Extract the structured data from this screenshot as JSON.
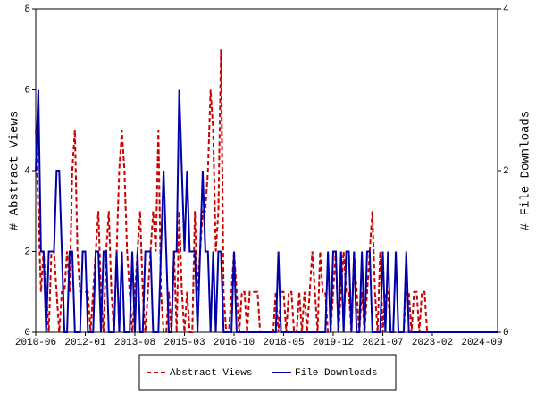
{
  "chart_data": {
    "type": "line",
    "y_label": "# Abstract Views",
    "y2_label": "# File Downloads",
    "categories": [
      "2010-06",
      null,
      null,
      null,
      null,
      null,
      null,
      null,
      null,
      null,
      null,
      null,
      null,
      null,
      null,
      null,
      null,
      null,
      null,
      "2012-01",
      null,
      null,
      null,
      null,
      null,
      null,
      null,
      null,
      null,
      null,
      null,
      null,
      null,
      null,
      null,
      null,
      null,
      null,
      "2013-08",
      null,
      null,
      null,
      null,
      null,
      null,
      null,
      null,
      null,
      null,
      null,
      null,
      null,
      null,
      null,
      null,
      null,
      null,
      "2015-03",
      null,
      null,
      null,
      null,
      null,
      null,
      null,
      null,
      null,
      null,
      null,
      null,
      null,
      null,
      null,
      null,
      null,
      null,
      "2016-10",
      null,
      null,
      null,
      null,
      null,
      null,
      null,
      null,
      null,
      null,
      null,
      null,
      null,
      null,
      null,
      null,
      null,
      null,
      "2018-05",
      null,
      null,
      null,
      null,
      null,
      null,
      null,
      null,
      null,
      null,
      null,
      null,
      null,
      null,
      null,
      null,
      null,
      null,
      "2019-12",
      null,
      null,
      null,
      null,
      null,
      null,
      null,
      null,
      null,
      null,
      null,
      null,
      null,
      null,
      null,
      null,
      null,
      null,
      "2021-07",
      null,
      null,
      null,
      null,
      null,
      null,
      null,
      null,
      null,
      null,
      null,
      null,
      null,
      null,
      null,
      null,
      null,
      null,
      "2023-02",
      null,
      null,
      null,
      null,
      null,
      null,
      null,
      null,
      null,
      null,
      null,
      null,
      null,
      null,
      null,
      null,
      null,
      null,
      "2024-09",
      null,
      null,
      null,
      null,
      null,
      null
    ],
    "series": [
      {
        "name": "Abstract Views",
        "color": "#cc0000",
        "dash": true,
        "values": [
          5,
          3,
          1,
          2,
          1,
          0,
          2,
          2,
          1,
          0,
          1,
          1,
          2,
          1,
          4,
          5,
          2,
          1,
          1,
          1,
          1,
          0,
          1,
          2,
          3,
          1,
          0,
          2,
          3,
          1,
          0,
          2,
          4,
          5,
          4,
          2,
          1,
          0,
          1,
          2,
          3,
          1,
          0,
          1,
          2,
          3,
          2,
          5,
          1,
          0,
          0,
          1,
          0,
          2,
          0,
          3,
          1,
          0,
          1,
          0,
          0,
          3,
          1,
          2,
          3,
          3,
          4,
          6,
          5,
          2,
          3,
          7,
          1,
          0,
          0,
          1,
          2,
          1,
          0,
          1,
          1,
          0,
          1,
          1,
          1,
          1,
          0,
          0,
          0,
          0,
          0,
          0,
          1,
          0,
          1,
          1,
          0,
          1,
          1,
          0,
          0,
          1,
          0,
          1,
          0,
          1,
          2,
          1,
          0,
          2,
          1,
          1,
          0,
          0,
          1,
          2,
          0,
          1,
          2,
          1,
          1,
          0,
          2,
          1,
          0,
          1,
          0,
          1,
          2,
          3,
          1,
          0,
          2,
          0,
          1,
          1,
          0,
          0,
          0,
          0,
          0,
          0,
          1,
          1,
          0,
          1,
          1,
          0,
          1,
          1,
          0,
          0,
          0,
          0,
          0,
          0,
          0,
          0,
          0,
          0,
          0,
          0,
          0,
          0,
          0,
          0,
          0,
          0,
          0,
          0,
          0,
          0,
          0,
          0,
          0,
          0,
          0,
          0
        ]
      },
      {
        "name": "File Downloads",
        "color": "#0000aa",
        "axis": "y2",
        "values": [
          2,
          3,
          1,
          1,
          0,
          1,
          1,
          1,
          2,
          2,
          1,
          0,
          0,
          1,
          1,
          0,
          0,
          0,
          1,
          1,
          0,
          0,
          0,
          1,
          1,
          0,
          1,
          1,
          0,
          0,
          0,
          1,
          0,
          1,
          0,
          0,
          0,
          1,
          0,
          1,
          0,
          0,
          1,
          1,
          1,
          0,
          0,
          0,
          1,
          2,
          1,
          0,
          0,
          1,
          1,
          3,
          2,
          1,
          2,
          1,
          1,
          1,
          0,
          1,
          2,
          1,
          1,
          0,
          1,
          0,
          1,
          1,
          0,
          0,
          0,
          0,
          1,
          0,
          0,
          0,
          0,
          0,
          0,
          0,
          0,
          0,
          0,
          0,
          0,
          0,
          0,
          0,
          0,
          1,
          0,
          0,
          0,
          0,
          0,
          0,
          0,
          0,
          0,
          0,
          0,
          0,
          0,
          0,
          0,
          0,
          0,
          0,
          1,
          0,
          1,
          1,
          0,
          1,
          0,
          1,
          1,
          0,
          1,
          0,
          0,
          1,
          0,
          1,
          1,
          0,
          0,
          0,
          0,
          1,
          0,
          1,
          0,
          0,
          1,
          0,
          0,
          0,
          1,
          0,
          0,
          0,
          0,
          0,
          0,
          0,
          0,
          0,
          0,
          0,
          0,
          0,
          0,
          0,
          0,
          0,
          0,
          0,
          0,
          0,
          0,
          0,
          0,
          0,
          0,
          0,
          0,
          0,
          0,
          0,
          0,
          0,
          0,
          0
        ]
      }
    ],
    "ylim": [
      0,
      8
    ],
    "yticks": [
      0,
      2,
      4,
      6,
      8
    ],
    "y2lim": [
      0,
      4
    ],
    "y2ticks": [
      0,
      2,
      4
    ],
    "legend": "bottom"
  }
}
